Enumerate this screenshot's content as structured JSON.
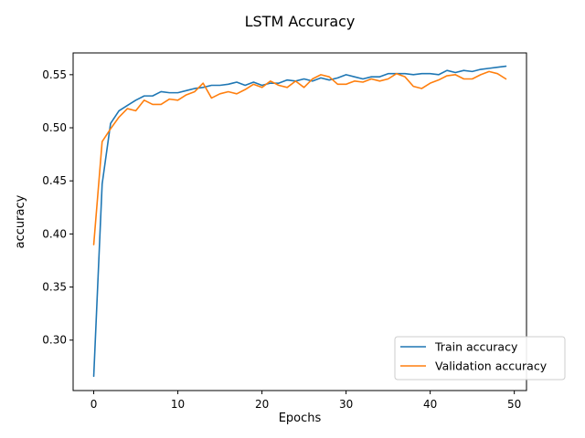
{
  "chart_data": {
    "type": "line",
    "title": "LSTM Accuracy",
    "xlabel": "Epochs",
    "ylabel": "accuracy",
    "xlim": [
      -2.45,
      51.45
    ],
    "ylim": [
      0.2525,
      0.5705
    ],
    "xticks": [
      0,
      10,
      20,
      30,
      40,
      50
    ],
    "xtick_labels": [
      "0",
      "10",
      "20",
      "30",
      "40",
      "50"
    ],
    "yticks": [
      0.3,
      0.35,
      0.4,
      0.45,
      0.5,
      0.55
    ],
    "ytick_labels": [
      "0.30",
      "0.35",
      "0.40",
      "0.45",
      "0.50",
      "0.55"
    ],
    "grid": false,
    "legend_position": "lower-right",
    "x": [
      0,
      1,
      2,
      3,
      4,
      5,
      6,
      7,
      8,
      9,
      10,
      11,
      12,
      13,
      14,
      15,
      16,
      17,
      18,
      19,
      20,
      21,
      22,
      23,
      24,
      25,
      26,
      27,
      28,
      29,
      30,
      31,
      32,
      33,
      34,
      35,
      36,
      37,
      38,
      39,
      40,
      41,
      42,
      43,
      44,
      45,
      46,
      47,
      48,
      49
    ],
    "series": [
      {
        "name": "Train accuracy",
        "color": "#1f77b4",
        "values": [
          0.266,
          0.447,
          0.504,
          0.516,
          0.521,
          0.526,
          0.53,
          0.53,
          0.534,
          0.533,
          0.533,
          0.535,
          0.537,
          0.538,
          0.54,
          0.54,
          0.541,
          0.543,
          0.54,
          0.543,
          0.54,
          0.542,
          0.542,
          0.545,
          0.544,
          0.546,
          0.544,
          0.547,
          0.545,
          0.547,
          0.55,
          0.548,
          0.546,
          0.548,
          0.548,
          0.551,
          0.551,
          0.551,
          0.55,
          0.551,
          0.551,
          0.55,
          0.554,
          0.552,
          0.554,
          0.553,
          0.555,
          0.556,
          0.557,
          0.558
        ]
      },
      {
        "name": "Validation accuracy",
        "color": "#ff7f0e",
        "values": [
          0.39,
          0.487,
          0.499,
          0.51,
          0.518,
          0.516,
          0.526,
          0.522,
          0.522,
          0.527,
          0.526,
          0.531,
          0.534,
          0.542,
          0.528,
          0.532,
          0.534,
          0.532,
          0.536,
          0.541,
          0.538,
          0.544,
          0.54,
          0.538,
          0.544,
          0.538,
          0.546,
          0.55,
          0.548,
          0.541,
          0.541,
          0.544,
          0.543,
          0.546,
          0.544,
          0.546,
          0.551,
          0.548,
          0.539,
          0.537,
          0.542,
          0.545,
          0.549,
          0.55,
          0.546,
          0.546,
          0.55,
          0.553,
          0.551,
          0.546
        ]
      }
    ]
  }
}
